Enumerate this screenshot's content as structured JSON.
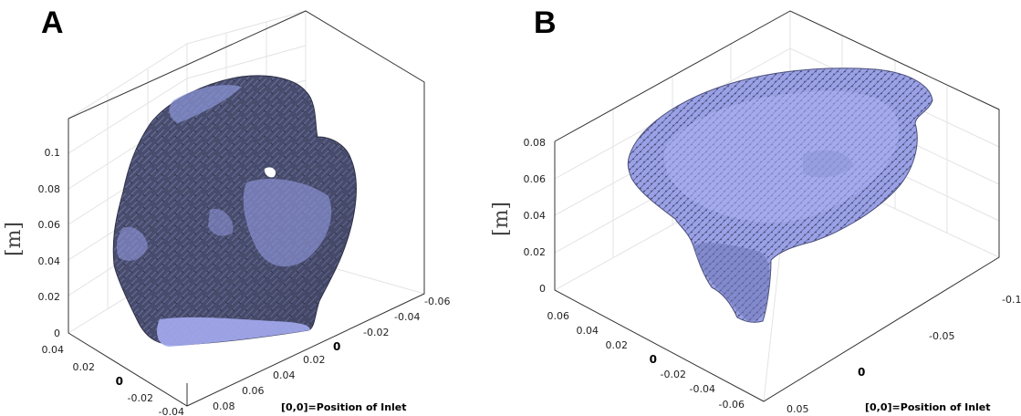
{
  "panel_a": {
    "label": "A",
    "unit_label": "[m]",
    "z_ticks": [
      "0",
      "0.02",
      "0.04",
      "0.06",
      "0.08",
      "0.1"
    ],
    "left_ticks": [
      "0.04",
      "0.02",
      "0",
      "-0.02",
      "-0.04"
    ],
    "right_ticks": [
      "0.08",
      "0.06",
      "0.04",
      "0.02",
      "0",
      "-0.02",
      "-0.04",
      "-0.06"
    ],
    "note": "[0,0]=Position of Inlet",
    "surface_color": "#9ea6f2"
  },
  "panel_b": {
    "label": "B",
    "unit_label": "[m]",
    "z_ticks": [
      "0",
      "0.02",
      "0.04",
      "0.06",
      "0.08"
    ],
    "left_ticks": [
      "0.06",
      "0.04",
      "0.02",
      "0",
      "-0.02",
      "-0.04",
      "-0.06"
    ],
    "right_ticks": [
      "0.05",
      "0",
      "-0.05",
      "-0.1"
    ],
    "note": "[0,0]=Position of Inlet",
    "surface_color": "#a3a9ee"
  }
}
